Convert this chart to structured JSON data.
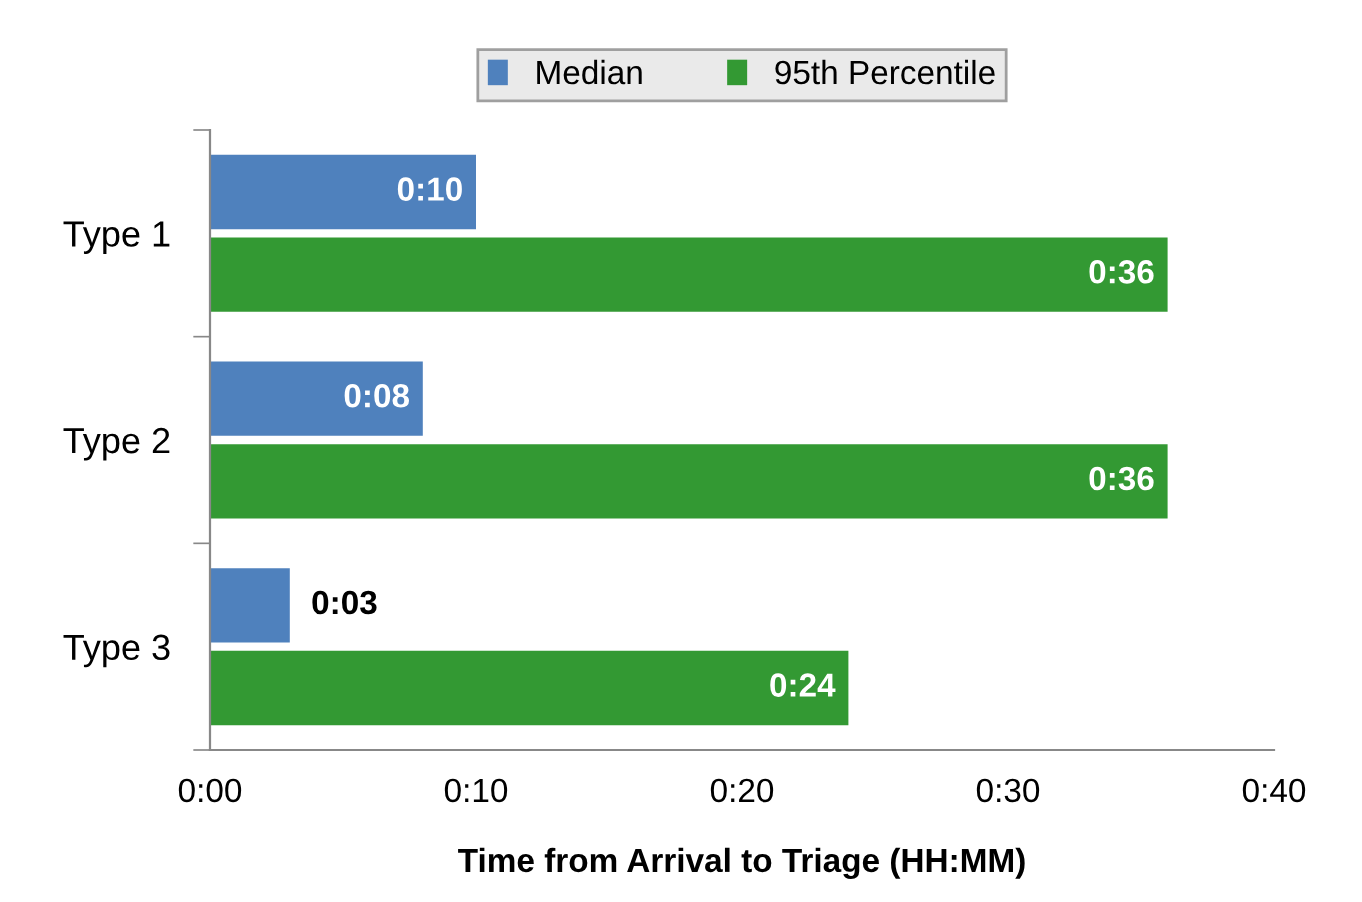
{
  "chart_data": {
    "type": "bar",
    "orientation": "horizontal",
    "xlabel": "Time from Arrival to Triage (HH:MM)",
    "categories": [
      "Type 1",
      "Type 2",
      "Type 3"
    ],
    "series": [
      {
        "name": "Median",
        "color": "#4f81bd",
        "values": [
          10,
          8,
          3
        ],
        "value_labels": [
          "0:10",
          "0:08",
          "0:03"
        ]
      },
      {
        "name": "95th Percentile",
        "color": "#339933",
        "values": [
          36,
          36,
          24
        ],
        "value_labels": [
          "0:36",
          "0:36",
          "0:24"
        ]
      }
    ],
    "xlim": [
      0,
      40
    ],
    "xticks": [
      {
        "value": 0,
        "label": "0:00"
      },
      {
        "value": 10,
        "label": "0:10"
      },
      {
        "value": 20,
        "label": "0:20"
      },
      {
        "value": 30,
        "label": "0:30"
      },
      {
        "value": 40,
        "label": "0:40"
      }
    ],
    "grid": false,
    "legend": "top"
  }
}
